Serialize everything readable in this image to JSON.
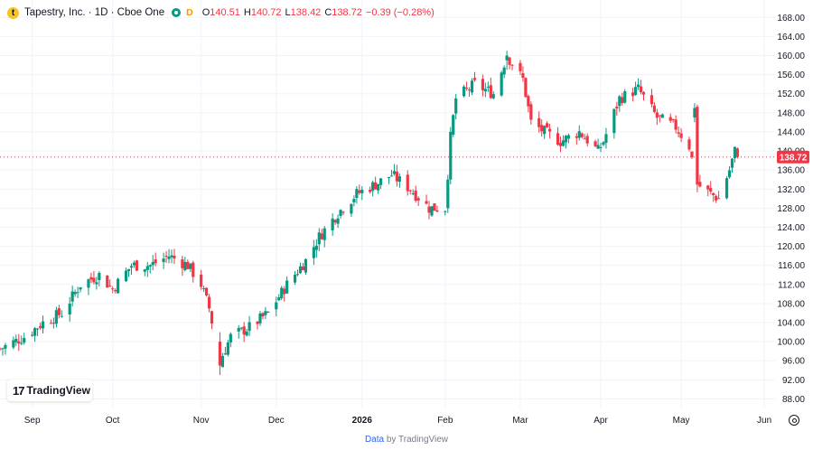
{
  "header": {
    "logo_letter": "t",
    "title": "Tapestry, Inc. · 1D · Cboe One",
    "status_icon": "market-open-dot-icon",
    "delay_badge": "D",
    "o_label": "O",
    "o_value": "140.51",
    "h_label": "H",
    "h_value": "140.72",
    "l_label": "L",
    "l_value": "138.42",
    "c_label": "C",
    "c_value": "138.72",
    "change": "−0.39 (−0.28%)"
  },
  "watermark": {
    "text": "TradingView"
  },
  "footer": {
    "data_link": "Data",
    "by_text": "by TradingView"
  },
  "colors": {
    "up": "#089981",
    "down": "#f23645",
    "grid": "#f0f3fa",
    "axis_text": "#131722",
    "price_tag": "#f23645"
  },
  "chart_data": {
    "type": "candlestick",
    "title": "Tapestry, Inc. · 1D · Cboe One",
    "ylim": [
      86,
      169
    ],
    "y_ticks": [
      88,
      92,
      96,
      100,
      104,
      108,
      112,
      116,
      120,
      124,
      128,
      132,
      136,
      140,
      144,
      148,
      152,
      156,
      160,
      164,
      168
    ],
    "y_tick_labels": [
      "88.00",
      "92.00",
      "96.00",
      "100.00",
      "104.00",
      "108.00",
      "112.00",
      "116.00",
      "120.00",
      "124.00",
      "128.00",
      "132.00",
      "136.00",
      "140.00",
      "144.00",
      "148.00",
      "152.00",
      "156.00",
      "160.00",
      "164.00",
      "168.00"
    ],
    "x_tick_labels": [
      "Sep",
      "Oct",
      "Nov",
      "Dec",
      "2026",
      "Feb",
      "Mar",
      "Apr",
      "May",
      "Jun"
    ],
    "x_tick_dates": [
      "2025-09-01",
      "2025-10-01",
      "2025-11-03",
      "2025-12-01",
      "2026-01-02",
      "2026-02-02",
      "2026-03-02",
      "2026-04-01",
      "2026-05-01",
      "2026-06-01"
    ],
    "date_range": [
      "2025-08-20",
      "2026-06-05"
    ],
    "last_price": "138.72",
    "last_price_value": 138.72,
    "grid": true,
    "anchors": [
      [
        "2025-08-20",
        98.5
      ],
      [
        "2025-08-29",
        101
      ],
      [
        "2025-09-05",
        104
      ],
      [
        "2025-09-12",
        106
      ],
      [
        "2025-09-19",
        112
      ],
      [
        "2025-09-26",
        114
      ],
      [
        "2025-10-01",
        111
      ],
      [
        "2025-10-08",
        116
      ],
      [
        "2025-10-15",
        116
      ],
      [
        "2025-10-22",
        118
      ],
      [
        "2025-10-29",
        116
      ],
      [
        "2025-11-03",
        112
      ],
      [
        "2025-11-06",
        107
      ],
      [
        "2025-11-10",
        96
      ],
      [
        "2025-11-14",
        101
      ],
      [
        "2025-11-21",
        103
      ],
      [
        "2025-11-28",
        106
      ],
      [
        "2025-12-05",
        112
      ],
      [
        "2025-12-12",
        117
      ],
      [
        "2025-12-17",
        122
      ],
      [
        "2025-12-24",
        127
      ],
      [
        "2025-12-31",
        131
      ],
      [
        "2026-01-07",
        133
      ],
      [
        "2026-01-13",
        135
      ],
      [
        "2026-01-20",
        132
      ],
      [
        "2026-01-27",
        128
      ],
      [
        "2026-02-02",
        128
      ],
      [
        "2026-02-04",
        143
      ],
      [
        "2026-02-06",
        151
      ],
      [
        "2026-02-13",
        154
      ],
      [
        "2026-02-20",
        152
      ],
      [
        "2026-02-25",
        160
      ],
      [
        "2026-03-03",
        155
      ],
      [
        "2026-03-06",
        146
      ],
      [
        "2026-03-11",
        144
      ],
      [
        "2026-03-17",
        142
      ],
      [
        "2026-03-24",
        144
      ],
      [
        "2026-03-31",
        140
      ],
      [
        "2026-04-02",
        142
      ],
      [
        "2026-04-08",
        151
      ],
      [
        "2026-04-15",
        153
      ],
      [
        "2026-04-22",
        147
      ],
      [
        "2026-04-29",
        145
      ],
      [
        "2026-05-04",
        141
      ],
      [
        "2026-05-07",
        133
      ],
      [
        "2026-05-12",
        131
      ],
      [
        "2026-05-15",
        130
      ],
      [
        "2026-05-19",
        136
      ],
      [
        "2026-05-21",
        140
      ],
      [
        "2026-05-22",
        138.72
      ]
    ],
    "notable_candles": [
      [
        "2025-11-10",
        100,
        102,
        93,
        95
      ],
      [
        "2026-02-03",
        128,
        135,
        127,
        134
      ],
      [
        "2026-02-04",
        134,
        145,
        133,
        144
      ],
      [
        "2026-02-25",
        159,
        161,
        157,
        160
      ],
      [
        "2026-05-06",
        147,
        150,
        146,
        149
      ],
      [
        "2026-05-22",
        140.51,
        140.72,
        138.42,
        138.72
      ]
    ]
  }
}
